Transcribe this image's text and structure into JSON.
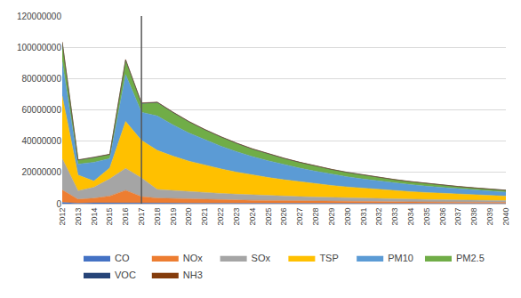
{
  "chart_data": {
    "type": "area",
    "stacked": true,
    "x": [
      2012,
      2013,
      2014,
      2015,
      2016,
      2017,
      2018,
      2019,
      2020,
      2021,
      2022,
      2023,
      2024,
      2025,
      2026,
      2027,
      2028,
      2029,
      2030,
      2031,
      2032,
      2033,
      2034,
      2035,
      2036,
      2037,
      2038,
      2039,
      2040
    ],
    "series": [
      {
        "name": "CO",
        "color": "#4472C4",
        "values": [
          800000,
          300000,
          500000,
          400000,
          600000,
          500000,
          400000,
          380000,
          350000,
          330000,
          310000,
          290000,
          270000,
          255000,
          240000,
          225000,
          210000,
          200000,
          190000,
          180000,
          170000,
          162000,
          154000,
          146000,
          138000,
          130000,
          123000,
          116000,
          110000
        ]
      },
      {
        "name": "NOx",
        "color": "#ED7D31",
        "values": [
          8000000,
          2500000,
          3000000,
          4500000,
          8000000,
          4000000,
          3200000,
          2900000,
          2650000,
          2450000,
          2260000,
          2090000,
          1930000,
          1800000,
          1680000,
          1570000,
          1470000,
          1380000,
          1300000,
          1220000,
          1150000,
          1085000,
          1025000,
          970000,
          920000,
          870000,
          825000,
          782000,
          743000
        ]
      },
      {
        "name": "SOx",
        "color": "#A5A5A5",
        "values": [
          20000000,
          5500000,
          7000000,
          11000000,
          14000000,
          12000000,
          5500000,
          5100000,
          4700000,
          4350000,
          4020000,
          3720000,
          3440000,
          3200000,
          2970000,
          2760000,
          2570000,
          2390000,
          2230000,
          2080000,
          1940000,
          1810000,
          1690000,
          1580000,
          1480000,
          1380000,
          1290000,
          1210000,
          1130000
        ]
      },
      {
        "name": "TSP",
        "color": "#FFC000",
        "values": [
          40000000,
          10000000,
          4000000,
          7000000,
          30000000,
          24000000,
          25000000,
          22000000,
          19500000,
          17500000,
          15700000,
          14100000,
          12700000,
          11500000,
          10400000,
          9400000,
          8500000,
          7700000,
          7000000,
          6400000,
          5800000,
          5300000,
          4850000,
          4440000,
          4070000,
          3730000,
          3420000,
          3140000,
          2880000
        ]
      },
      {
        "name": "PM10",
        "color": "#5B9BD5",
        "values": [
          22000000,
          7000000,
          12000000,
          6000000,
          30000000,
          18000000,
          22000000,
          20000000,
          18000000,
          16200000,
          14600000,
          13100000,
          11800000,
          10700000,
          9700000,
          8800000,
          8000000,
          7200000,
          6500000,
          5900000,
          5400000,
          4900000,
          4450000,
          4050000,
          3700000,
          3380000,
          3090000,
          2830000,
          2590000
        ]
      },
      {
        "name": "PM2.5",
        "color": "#70AD47",
        "values": [
          12000000,
          2500000,
          3000000,
          2500000,
          9000000,
          5500000,
          8500000,
          7800000,
          7100000,
          6400000,
          5800000,
          5250000,
          4760000,
          4320000,
          3930000,
          3580000,
          3260000,
          2970000,
          2710000,
          2470000,
          2260000,
          2060000,
          1880000,
          1720000,
          1570000,
          1440000,
          1320000,
          1210000,
          1110000
        ]
      },
      {
        "name": "VOC",
        "color": "#264478",
        "values": [
          400000,
          150000,
          150000,
          150000,
          350000,
          250000,
          200000,
          185000,
          170000,
          158000,
          147000,
          137000,
          128000,
          120000,
          113000,
          106000,
          100000,
          94000,
          89000,
          84000,
          79000,
          75000,
          71000,
          67000,
          64000,
          60000,
          57000,
          54000,
          51000
        ]
      },
      {
        "name": "NH3",
        "color": "#843C0C",
        "values": [
          300000,
          100000,
          100000,
          100000,
          250000,
          200000,
          160000,
          148000,
          137000,
          127000,
          118000,
          110000,
          102000,
          95000,
          89000,
          83000,
          78000,
          73000,
          69000,
          65000,
          61000,
          57000,
          54000,
          51000,
          48000,
          45000,
          43000,
          41000,
          38000
        ]
      }
    ],
    "vline_x": 2017,
    "xlim": [
      2012,
      2040
    ],
    "xticks": [
      2012,
      2013,
      2014,
      2015,
      2016,
      2017,
      2018,
      2019,
      2020,
      2021,
      2022,
      2023,
      2024,
      2025,
      2026,
      2027,
      2028,
      2029,
      2030,
      2031,
      2032,
      2033,
      2034,
      2035,
      2036,
      2037,
      2038,
      2039,
      2040
    ],
    "ylim": [
      0,
      120000000
    ],
    "yticks": [
      0,
      20000000,
      40000000,
      60000000,
      80000000,
      100000000,
      120000000
    ],
    "grid": "y",
    "legend": "bottom"
  }
}
